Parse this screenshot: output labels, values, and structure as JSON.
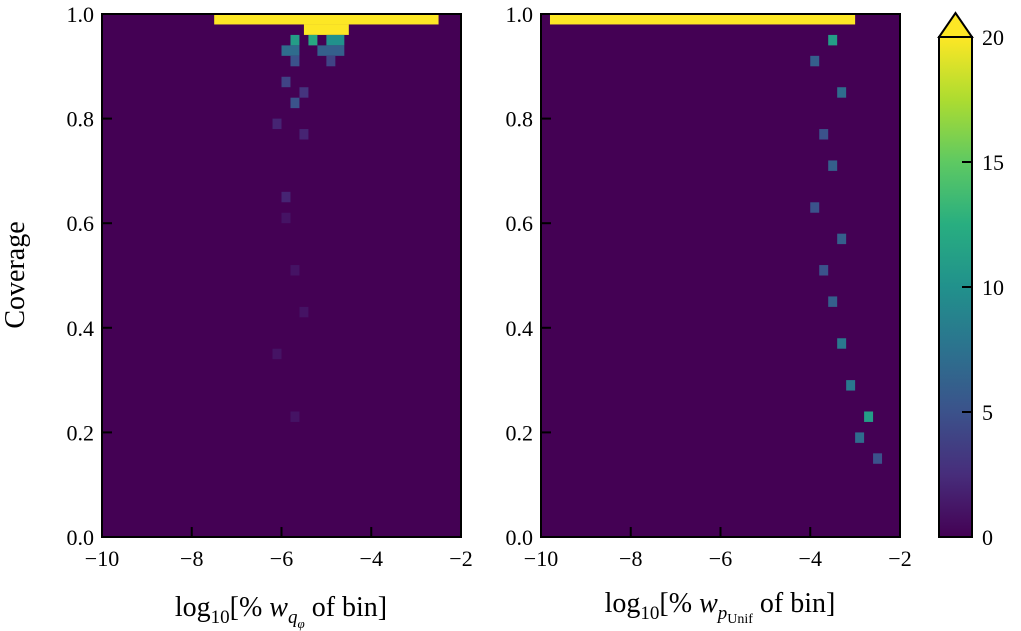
{
  "chart_data": [
    {
      "type": "heatmap",
      "panel": "left",
      "ylabel": "Coverage",
      "xlabel": "log10[% w_qφ of bin]",
      "xlim": [
        -10,
        -2
      ],
      "ylim": [
        0.0,
        1.0
      ],
      "x_ticks": [
        "−10",
        "−8",
        "−6",
        "−4",
        "−2"
      ],
      "y_ticks": [
        "0.0",
        "0.2",
        "0.4",
        "0.6",
        "0.8",
        "1.0"
      ],
      "background_count": 0,
      "cells": [
        {
          "x0": -7.5,
          "x1": -2.5,
          "y0": 0.98,
          "y1": 1.0,
          "count": 20
        },
        {
          "x0": -5.5,
          "x1": -4.5,
          "y0": 0.96,
          "y1": 0.98,
          "count": 20
        },
        {
          "x0": -5.8,
          "x1": -5.6,
          "y0": 0.94,
          "y1": 0.96,
          "count": 11
        },
        {
          "x0": -5.4,
          "x1": -5.2,
          "y0": 0.94,
          "y1": 0.96,
          "count": 12
        },
        {
          "x0": -5.0,
          "x1": -4.6,
          "y0": 0.94,
          "y1": 0.96,
          "count": 10
        },
        {
          "x0": -6.0,
          "x1": -5.6,
          "y0": 0.92,
          "y1": 0.94,
          "count": 7
        },
        {
          "x0": -5.2,
          "x1": -4.6,
          "y0": 0.92,
          "y1": 0.94,
          "count": 6
        },
        {
          "x0": -5.8,
          "x1": -5.6,
          "y0": 0.9,
          "y1": 0.92,
          "count": 5
        },
        {
          "x0": -5.0,
          "x1": -4.8,
          "y0": 0.9,
          "y1": 0.92,
          "count": 4
        },
        {
          "x0": -6.0,
          "x1": -5.8,
          "y0": 0.86,
          "y1": 0.88,
          "count": 4
        },
        {
          "x0": -5.6,
          "x1": -5.4,
          "y0": 0.84,
          "y1": 0.86,
          "count": 3
        },
        {
          "x0": -5.8,
          "x1": -5.6,
          "y0": 0.82,
          "y1": 0.84,
          "count": 5
        },
        {
          "x0": -6.2,
          "x1": -6.0,
          "y0": 0.78,
          "y1": 0.8,
          "count": 2
        },
        {
          "x0": -5.6,
          "x1": -5.4,
          "y0": 0.76,
          "y1": 0.78,
          "count": 2
        },
        {
          "x0": -6.0,
          "x1": -5.8,
          "y0": 0.64,
          "y1": 0.66,
          "count": 2
        },
        {
          "x0": -6.0,
          "x1": -5.8,
          "y0": 0.6,
          "y1": 0.62,
          "count": 1
        },
        {
          "x0": -5.8,
          "x1": -5.6,
          "y0": 0.5,
          "y1": 0.52,
          "count": 1
        },
        {
          "x0": -5.6,
          "x1": -5.4,
          "y0": 0.42,
          "y1": 0.44,
          "count": 1
        },
        {
          "x0": -6.2,
          "x1": -6.0,
          "y0": 0.34,
          "y1": 0.36,
          "count": 1
        },
        {
          "x0": -5.8,
          "x1": -5.6,
          "y0": 0.22,
          "y1": 0.24,
          "count": 1
        }
      ]
    },
    {
      "type": "heatmap",
      "panel": "right",
      "xlabel": "log10[% w_pUnif of bin]",
      "xlim": [
        -10,
        -2
      ],
      "ylim": [
        0.0,
        1.0
      ],
      "x_ticks": [
        "−10",
        "−8",
        "−6",
        "−4",
        "−2"
      ],
      "y_ticks": [
        "0.0",
        "0.2",
        "0.4",
        "0.6",
        "0.8",
        "1.0"
      ],
      "background_count": 0,
      "cells": [
        {
          "x0": -9.8,
          "x1": -3.0,
          "y0": 0.98,
          "y1": 1.0,
          "count": 20
        },
        {
          "x0": -3.6,
          "x1": -3.4,
          "y0": 0.94,
          "y1": 0.96,
          "count": 11
        },
        {
          "x0": -4.0,
          "x1": -3.8,
          "y0": 0.9,
          "y1": 0.92,
          "count": 6
        },
        {
          "x0": -3.4,
          "x1": -3.2,
          "y0": 0.84,
          "y1": 0.86,
          "count": 7
        },
        {
          "x0": -3.8,
          "x1": -3.6,
          "y0": 0.76,
          "y1": 0.78,
          "count": 5
        },
        {
          "x0": -3.6,
          "x1": -3.4,
          "y0": 0.7,
          "y1": 0.72,
          "count": 6
        },
        {
          "x0": -4.0,
          "x1": -3.8,
          "y0": 0.62,
          "y1": 0.64,
          "count": 5
        },
        {
          "x0": -3.4,
          "x1": -3.2,
          "y0": 0.56,
          "y1": 0.58,
          "count": 6
        },
        {
          "x0": -3.8,
          "x1": -3.6,
          "y0": 0.5,
          "y1": 0.52,
          "count": 5
        },
        {
          "x0": -3.6,
          "x1": -3.4,
          "y0": 0.44,
          "y1": 0.46,
          "count": 6
        },
        {
          "x0": -3.4,
          "x1": -3.2,
          "y0": 0.36,
          "y1": 0.38,
          "count": 8
        },
        {
          "x0": -3.2,
          "x1": -3.0,
          "y0": 0.28,
          "y1": 0.3,
          "count": 8
        },
        {
          "x0": -2.8,
          "x1": -2.6,
          "y0": 0.22,
          "y1": 0.24,
          "count": 11
        },
        {
          "x0": -3.0,
          "x1": -2.8,
          "y0": 0.18,
          "y1": 0.2,
          "count": 7
        },
        {
          "x0": -2.6,
          "x1": -2.4,
          "y0": 0.14,
          "y1": 0.16,
          "count": 5
        }
      ]
    }
  ],
  "colorbar": {
    "min": 0,
    "max": 20,
    "extend": "max",
    "ticks": [
      "0",
      "5",
      "10",
      "15",
      "20"
    ],
    "colormap": "viridis"
  }
}
